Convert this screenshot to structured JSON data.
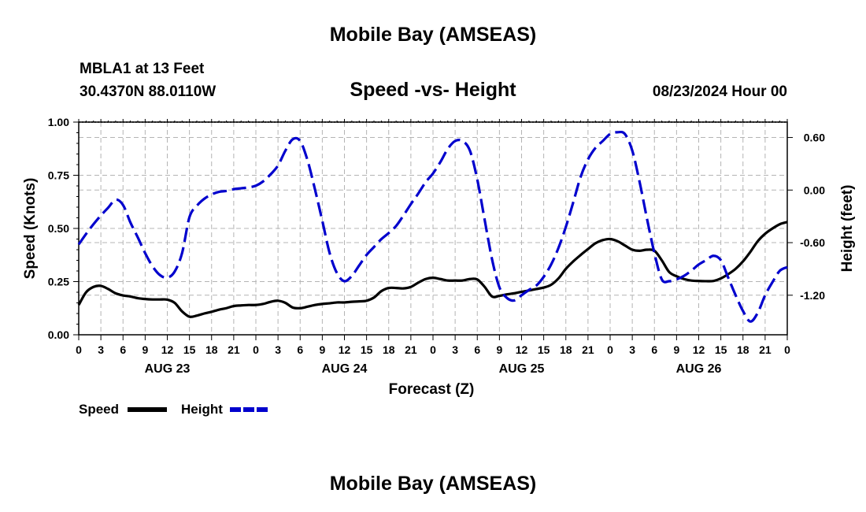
{
  "header": {
    "title": "Mobile Bay (AMSEAS)",
    "station": "MBLA1 at 13 Feet",
    "coordinates": "30.4370N  88.0110W",
    "subtitle": "Speed -vs- Height",
    "run_time": "08/23/2024 Hour 00"
  },
  "footer": {
    "repeat_title": "Mobile Bay (AMSEAS)"
  },
  "chart_data": {
    "type": "line",
    "title": "Speed -vs- Height",
    "xlabel": "Forecast (Z)",
    "ylabel_left": "Speed (Knots)",
    "ylabel_right": "Height (feet)",
    "x_range_hours": [
      0,
      96
    ],
    "x_tick_labels": [
      "0",
      "3",
      "6",
      "9",
      "12",
      "15",
      "18",
      "21",
      "0",
      "3",
      "6",
      "9",
      "12",
      "15",
      "18",
      "21",
      "0",
      "3",
      "6",
      "9",
      "12",
      "15",
      "18",
      "21",
      "0",
      "3",
      "6",
      "9",
      "12",
      "15",
      "18",
      "21",
      "0"
    ],
    "day_labels": [
      {
        "hour": 12,
        "label": "AUG 23"
      },
      {
        "hour": 36,
        "label": "AUG 24"
      },
      {
        "hour": 60,
        "label": "AUG 25"
      },
      {
        "hour": 84,
        "label": "AUG 26"
      }
    ],
    "ylim_left": [
      0,
      1.0
    ],
    "y_ticks_left": [
      0,
      0.25,
      0.5,
      0.75,
      1.0
    ],
    "y_tick_labels_left": [
      "0.00",
      "0.25",
      "0.50",
      "0.75",
      "1.00"
    ],
    "ylim_right": [
      -1.6514,
      0.7757
    ],
    "y_ticks_right": [
      0.6,
      0.0,
      -0.6,
      -1.2
    ],
    "y_tick_labels_right": [
      "0.60",
      "0.00",
      "-0.60",
      "-1.20"
    ],
    "grid": true,
    "legend": {
      "position": "bottom-left",
      "entries": [
        "Speed",
        "Height"
      ]
    },
    "series": [
      {
        "name": "Speed",
        "axis": "left",
        "color": "#000000",
        "dash": "solid",
        "points": [
          [
            0,
            0.14
          ],
          [
            1,
            0.2
          ],
          [
            2,
            0.225
          ],
          [
            3,
            0.23
          ],
          [
            4,
            0.215
          ],
          [
            5,
            0.195
          ],
          [
            6,
            0.185
          ],
          [
            7,
            0.18
          ],
          [
            8,
            0.172
          ],
          [
            9,
            0.168
          ],
          [
            10,
            0.166
          ],
          [
            11,
            0.166
          ],
          [
            12,
            0.165
          ],
          [
            13,
            0.15
          ],
          [
            14,
            0.11
          ],
          [
            15,
            0.085
          ],
          [
            16,
            0.09
          ],
          [
            17,
            0.1
          ],
          [
            18,
            0.108
          ],
          [
            19,
            0.118
          ],
          [
            20,
            0.125
          ],
          [
            21,
            0.135
          ],
          [
            22,
            0.138
          ],
          [
            23,
            0.14
          ],
          [
            24,
            0.14
          ],
          [
            25,
            0.145
          ],
          [
            26,
            0.155
          ],
          [
            27,
            0.16
          ],
          [
            28,
            0.15
          ],
          [
            29,
            0.128
          ],
          [
            30,
            0.125
          ],
          [
            31,
            0.132
          ],
          [
            32,
            0.14
          ],
          [
            33,
            0.145
          ],
          [
            34,
            0.148
          ],
          [
            35,
            0.152
          ],
          [
            36,
            0.152
          ],
          [
            37,
            0.155
          ],
          [
            38,
            0.157
          ],
          [
            39,
            0.16
          ],
          [
            40,
            0.175
          ],
          [
            41,
            0.205
          ],
          [
            42,
            0.22
          ],
          [
            43,
            0.22
          ],
          [
            44,
            0.218
          ],
          [
            45,
            0.225
          ],
          [
            46,
            0.245
          ],
          [
            47,
            0.262
          ],
          [
            48,
            0.268
          ],
          [
            49,
            0.262
          ],
          [
            50,
            0.255
          ],
          [
            51,
            0.255
          ],
          [
            52,
            0.255
          ],
          [
            53,
            0.262
          ],
          [
            54,
            0.26
          ],
          [
            55,
            0.225
          ],
          [
            56,
            0.18
          ],
          [
            57,
            0.183
          ],
          [
            58,
            0.19
          ],
          [
            59,
            0.195
          ],
          [
            60,
            0.202
          ],
          [
            61,
            0.208
          ],
          [
            62,
            0.215
          ],
          [
            63,
            0.222
          ],
          [
            64,
            0.235
          ],
          [
            65,
            0.265
          ],
          [
            66,
            0.31
          ],
          [
            67,
            0.345
          ],
          [
            68,
            0.375
          ],
          [
            69,
            0.403
          ],
          [
            70,
            0.43
          ],
          [
            71,
            0.445
          ],
          [
            72,
            0.45
          ],
          [
            73,
            0.44
          ],
          [
            74,
            0.42
          ],
          [
            75,
            0.4
          ],
          [
            76,
            0.395
          ],
          [
            77,
            0.4
          ],
          [
            78,
            0.395
          ],
          [
            79,
            0.35
          ],
          [
            80,
            0.295
          ],
          [
            81,
            0.275
          ],
          [
            82,
            0.262
          ],
          [
            83,
            0.255
          ],
          [
            84,
            0.253
          ],
          [
            85,
            0.252
          ],
          [
            86,
            0.253
          ],
          [
            87,
            0.265
          ],
          [
            88,
            0.285
          ],
          [
            89,
            0.31
          ],
          [
            90,
            0.345
          ],
          [
            91,
            0.39
          ],
          [
            92,
            0.44
          ],
          [
            93,
            0.475
          ],
          [
            94,
            0.5
          ],
          [
            95,
            0.52
          ],
          [
            96,
            0.53
          ]
        ]
      },
      {
        "name": "Height",
        "axis": "right",
        "color": "#0000CD",
        "dash": "dashed",
        "points": [
          [
            0,
            -0.62
          ],
          [
            1,
            -0.5
          ],
          [
            2,
            -0.39
          ],
          [
            3,
            -0.29
          ],
          [
            4,
            -0.2
          ],
          [
            5,
            -0.11
          ],
          [
            6,
            -0.17
          ],
          [
            7,
            -0.37
          ],
          [
            8,
            -0.54
          ],
          [
            9,
            -0.72
          ],
          [
            10,
            -0.87
          ],
          [
            11,
            -0.97
          ],
          [
            12,
            -1.0
          ],
          [
            13,
            -0.93
          ],
          [
            14,
            -0.72
          ],
          [
            15,
            -0.31
          ],
          [
            16,
            -0.18
          ],
          [
            17,
            -0.1
          ],
          [
            18,
            -0.05
          ],
          [
            19,
            -0.02
          ],
          [
            20,
            -0.01
          ],
          [
            21,
            0.01
          ],
          [
            22,
            0.02
          ],
          [
            23,
            0.03
          ],
          [
            24,
            0.05
          ],
          [
            25,
            0.1
          ],
          [
            26,
            0.18
          ],
          [
            27,
            0.28
          ],
          [
            28,
            0.45
          ],
          [
            29,
            0.58
          ],
          [
            30,
            0.56
          ],
          [
            31,
            0.34
          ],
          [
            32,
            0.01
          ],
          [
            33,
            -0.35
          ],
          [
            34,
            -0.72
          ],
          [
            35,
            -0.95
          ],
          [
            36,
            -1.04
          ],
          [
            37,
            -0.98
          ],
          [
            38,
            -0.86
          ],
          [
            39,
            -0.74
          ],
          [
            40,
            -0.65
          ],
          [
            41,
            -0.56
          ],
          [
            42,
            -0.49
          ],
          [
            43,
            -0.41
          ],
          [
            44,
            -0.29
          ],
          [
            45,
            -0.16
          ],
          [
            46,
            -0.04
          ],
          [
            47,
            0.09
          ],
          [
            48,
            0.19
          ],
          [
            49,
            0.32
          ],
          [
            50,
            0.47
          ],
          [
            51,
            0.56
          ],
          [
            52,
            0.56
          ],
          [
            53,
            0.45
          ],
          [
            54,
            0.12
          ],
          [
            55,
            -0.34
          ],
          [
            56,
            -0.79
          ],
          [
            57,
            -1.11
          ],
          [
            58,
            -1.23
          ],
          [
            59,
            -1.26
          ],
          [
            60,
            -1.2
          ],
          [
            61,
            -1.14
          ],
          [
            62,
            -1.09
          ],
          [
            63,
            -0.99
          ],
          [
            64,
            -0.85
          ],
          [
            65,
            -0.66
          ],
          [
            66,
            -0.42
          ],
          [
            67,
            -0.14
          ],
          [
            68,
            0.15
          ],
          [
            69,
            0.35
          ],
          [
            70,
            0.48
          ],
          [
            71,
            0.56
          ],
          [
            72,
            0.64
          ],
          [
            73,
            0.66
          ],
          [
            74,
            0.64
          ],
          [
            75,
            0.45
          ],
          [
            76,
            0.09
          ],
          [
            77,
            -0.33
          ],
          [
            78,
            -0.72
          ],
          [
            79,
            -1.02
          ],
          [
            80,
            -1.04
          ],
          [
            81,
            -1.02
          ],
          [
            82,
            -0.98
          ],
          [
            83,
            -0.92
          ],
          [
            84,
            -0.85
          ],
          [
            85,
            -0.8
          ],
          [
            86,
            -0.75
          ],
          [
            87,
            -0.8
          ],
          [
            88,
            -1.0
          ],
          [
            89,
            -1.2
          ],
          [
            90,
            -1.38
          ],
          [
            91,
            -1.5
          ],
          [
            92,
            -1.4
          ],
          [
            93,
            -1.2
          ],
          [
            94,
            -1.05
          ],
          [
            95,
            -0.92
          ],
          [
            96,
            -0.88
          ]
        ]
      }
    ]
  }
}
